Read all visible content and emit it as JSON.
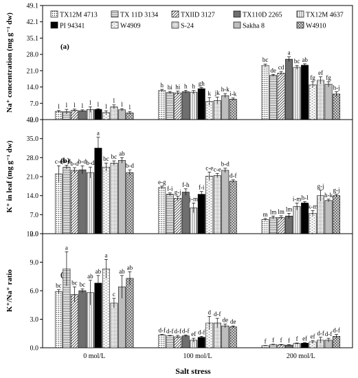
{
  "xlabel": "Salt stress",
  "categories": [
    "0 mol/L",
    "100 mol/L",
    "200 mol/L"
  ],
  "legend": [
    {
      "name": "TX12M 4713",
      "pattern": "dots"
    },
    {
      "name": "TX 11D 3134",
      "pattern": "hlines"
    },
    {
      "name": "TXIID 3127",
      "pattern": "diag"
    },
    {
      "name": "TX110D 2265",
      "pattern": "darkgray"
    },
    {
      "name": "TX12M 4637",
      "pattern": "vlines"
    },
    {
      "name": "PI 94341",
      "pattern": "black"
    },
    {
      "name": "W4909",
      "pattern": "dashes"
    },
    {
      "name": "S-24",
      "pattern": "fine"
    },
    {
      "name": "Sakha 8",
      "pattern": "gray"
    },
    {
      "name": "W4910",
      "pattern": "check"
    }
  ],
  "chart_data": [
    {
      "type": "bar",
      "panel": "(a)",
      "ylabel": "Na⁺ concentration (mg g⁻¹ dw)",
      "ylim": [
        0,
        49.1
      ],
      "yticks": [
        "0.0",
        "7.0",
        "14.0",
        "21.0",
        "28.0",
        "35.1",
        "42.1",
        "49.1"
      ],
      "categories": [
        "0 mol/L",
        "100 mol/L",
        "200 mol/L"
      ],
      "series": [
        {
          "name": "TX12M 4713",
          "values": [
            3.5,
            12.5,
            23.3
          ],
          "errors": [
            0.4,
            0.5,
            0.6
          ],
          "labels": [
            "l",
            "h",
            "bc"
          ]
        },
        {
          "name": "TX 11D 3134",
          "values": [
            3.4,
            11.6,
            19.0
          ],
          "errors": [
            1.0,
            0.5,
            0.4
          ],
          "labels": [
            "l",
            "hi",
            "de"
          ]
        },
        {
          "name": "TXIID 3127",
          "values": [
            4.0,
            11.5,
            20.0
          ],
          "errors": [
            0.5,
            0.8,
            0.7
          ],
          "labels": [
            "l",
            "hi",
            "cd"
          ]
        },
        {
          "name": "TX110D 2265",
          "values": [
            3.8,
            12.0,
            26.0
          ],
          "errors": [
            0.4,
            0.6,
            1.0
          ],
          "labels": [
            "l",
            "h",
            "a"
          ]
        },
        {
          "name": "TX12M 4637",
          "values": [
            4.3,
            11.8,
            22.5
          ],
          "errors": [
            1.2,
            0.7,
            0.8
          ],
          "labels": [
            "l",
            "h",
            "bc"
          ]
        },
        {
          "name": "PI 94341",
          "values": [
            4.4,
            13.3,
            23.4
          ],
          "errors": [
            0.3,
            0.5,
            0.6
          ],
          "labels": [
            "l",
            "gh",
            "ab"
          ]
        },
        {
          "name": "W4909",
          "values": [
            3.0,
            7.8,
            15.0
          ],
          "errors": [
            0.8,
            1.7,
            1.3
          ],
          "labels": [
            "l",
            "k",
            "fg"
          ]
        },
        {
          "name": "S-24",
          "values": [
            5.5,
            8.2,
            16.9
          ],
          "errors": [
            0.8,
            1.5,
            1.5
          ],
          "labels": [
            "l",
            "jk",
            "ef"
          ]
        },
        {
          "name": "Sakha 8",
          "values": [
            4.2,
            10.3,
            15.2
          ],
          "errors": [
            0.5,
            0.9,
            1.1
          ],
          "labels": [
            "l",
            "h-k",
            "fg"
          ]
        },
        {
          "name": "W4910",
          "values": [
            2.9,
            8.8,
            11.0
          ],
          "errors": [
            0.6,
            0.5,
            1.0
          ],
          "labels": [
            "l",
            "i-k",
            "h-j"
          ]
        }
      ]
    },
    {
      "type": "bar",
      "panel": "(b)",
      "ylabel": "K⁺ in leaf (mg g⁻¹ dw)",
      "ylim": [
        0,
        42.0
      ],
      "yticks": [
        "0.0",
        "7.0",
        "14.0",
        "21.0",
        "28.0",
        "35.0",
        "42.0"
      ],
      "categories": [
        "0 mol/L",
        "100 mol/L",
        "200 mol/L"
      ],
      "series": [
        {
          "name": "TX12M 4713",
          "values": [
            22.0,
            17.0,
            5.2
          ],
          "errors": [
            3.0,
            0.5,
            0.4
          ],
          "labels": [
            "c-e",
            "e-g",
            "m"
          ]
        },
        {
          "name": "TX 11D 3134",
          "values": [
            24.5,
            14.5,
            6.0
          ],
          "errors": [
            0.7,
            0.5,
            0.5
          ],
          "labels": [
            "b-d",
            "f-i",
            "lm"
          ]
        },
        {
          "name": "TXIID 3127",
          "values": [
            23.3,
            13.0,
            6.0
          ],
          "errors": [
            1.0,
            0.8,
            0.6
          ],
          "labels": [
            "b-d",
            "g-j",
            "lm"
          ]
        },
        {
          "name": "TX110D 2265",
          "values": [
            23.5,
            15.3,
            6.5
          ],
          "errors": [
            1.5,
            1.2,
            1.0
          ],
          "labels": [
            "b-d",
            "f-h",
            "lm"
          ]
        },
        {
          "name": "TX12M 4637",
          "values": [
            22.5,
            9.5,
            10.0
          ],
          "errors": [
            2.0,
            1.8,
            1.3
          ],
          "labels": [
            "b-d",
            "j-m",
            "i-m"
          ]
        },
        {
          "name": "PI 94341",
          "values": [
            31.5,
            14.5,
            11.3
          ],
          "errors": [
            4.0,
            1.0,
            0.5
          ],
          "labels": [
            "a",
            "f-i",
            "h-l"
          ]
        },
        {
          "name": "W4909",
          "values": [
            24.5,
            21.2,
            7.5
          ],
          "errors": [
            1.5,
            1.5,
            1.0
          ],
          "labels": [
            "bc",
            "c-e",
            "k-m"
          ]
        },
        {
          "name": "S-24",
          "values": [
            26.0,
            21.4,
            14.0
          ],
          "errors": [
            0.8,
            0.8,
            2.0
          ],
          "labels": [
            "bc",
            "c-e",
            "g-j"
          ]
        },
        {
          "name": "Sakha 8",
          "values": [
            27.0,
            23.3,
            12.2
          ],
          "errors": [
            1.0,
            0.8,
            0.5
          ],
          "labels": [
            "ab",
            "b-d",
            "h-k"
          ]
        },
        {
          "name": "W4910",
          "values": [
            22.5,
            19.3,
            14.0
          ],
          "errors": [
            1.0,
            0.5,
            0.5
          ],
          "labels": [
            "b-d",
            "d-f",
            "g-j"
          ]
        }
      ]
    },
    {
      "type": "bar",
      "panel": "(c)",
      "ylabel": "K⁺/Na⁺ ratio",
      "ylim": [
        0,
        12.0
      ],
      "yticks": [
        "0.0",
        "3.0",
        "6.0",
        "9.0",
        "12.0"
      ],
      "categories": [
        "0 mol/L",
        "100 mol/L",
        "200 mol/L"
      ],
      "series": [
        {
          "name": "TX12M 4713",
          "values": [
            5.9,
            1.35,
            0.22
          ],
          "errors": [
            0.2,
            0.05,
            0.03
          ],
          "labels": [
            "bc",
            "d-f",
            "f"
          ]
        },
        {
          "name": "TX 11D 3134",
          "values": [
            8.3,
            1.25,
            0.32
          ],
          "errors": [
            1.8,
            0.05,
            0.05
          ],
          "labels": [
            "a",
            "d-f",
            "f"
          ]
        },
        {
          "name": "TXIID 3127",
          "values": [
            5.6,
            1.15,
            0.3
          ],
          "errors": [
            0.8,
            0.15,
            0.05
          ],
          "labels": [
            "bc",
            "d-f",
            "f"
          ]
        },
        {
          "name": "TX110D 2265",
          "values": [
            6.0,
            1.25,
            0.28
          ],
          "errors": [
            0.2,
            0.1,
            0.05
          ],
          "labels": [
            "bc",
            "d-f",
            "f"
          ]
        },
        {
          "name": "TX12M 4637",
          "values": [
            5.8,
            0.8,
            0.45
          ],
          "errors": [
            1.3,
            0.2,
            0.05
          ],
          "labels": [
            "ab",
            "ef",
            "f"
          ]
        },
        {
          "name": "PI 94341",
          "values": [
            6.8,
            1.1,
            0.48
          ],
          "errors": [
            0.8,
            0.1,
            0.05
          ],
          "labels": [
            "ab",
            "d-f",
            "ef"
          ]
        },
        {
          "name": "W4909",
          "values": [
            8.3,
            2.6,
            0.6
          ],
          "errors": [
            1.0,
            0.7,
            0.15
          ],
          "labels": [
            "a",
            "d",
            "ef"
          ]
        },
        {
          "name": "S-24",
          "values": [
            4.7,
            2.6,
            0.8
          ],
          "errors": [
            0.5,
            0.5,
            0.3
          ],
          "labels": [
            "c",
            "d-f",
            "d-f"
          ]
        },
        {
          "name": "Sakha 8",
          "values": [
            6.4,
            2.3,
            0.8
          ],
          "errors": [
            1.2,
            0.2,
            0.2
          ],
          "labels": [
            "ab",
            "de",
            "d-f"
          ]
        },
        {
          "name": "W4910",
          "values": [
            7.3,
            2.2,
            1.2
          ],
          "errors": [
            0.7,
            0.1,
            0.2
          ],
          "labels": [
            "ab",
            "de",
            "d-f"
          ]
        }
      ]
    }
  ]
}
